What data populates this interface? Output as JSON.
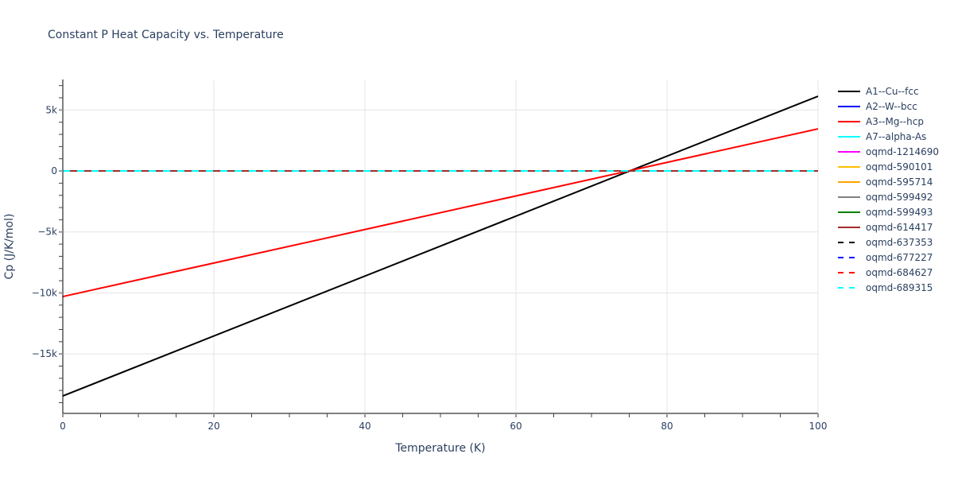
{
  "title": "Constant P Heat Capacity vs. Temperature",
  "chart_data": {
    "type": "line",
    "title": "Constant P Heat Capacity vs. Temperature",
    "xlabel": "Temperature (K)",
    "ylabel": "Cp (J/K/mol)",
    "xlim": [
      0,
      100
    ],
    "ylim": [
      -19880,
      7500
    ],
    "x_ticks": [
      0,
      20,
      40,
      60,
      80,
      100
    ],
    "x_tick_labels": [
      "0",
      "20",
      "40",
      "60",
      "80",
      "100"
    ],
    "y_ticks": [
      -15000,
      -10000,
      -5000,
      0,
      5000
    ],
    "y_tick_labels": [
      "−15k",
      "−10k",
      "−5k",
      "0",
      "5k"
    ],
    "grid": true,
    "legend_position": "right",
    "series": [
      {
        "name": "A1--Cu--fcc",
        "color": "#000000",
        "dash": "solid",
        "x": [
          0,
          100
        ],
        "values": [
          -18450,
          6130
        ]
      },
      {
        "name": "A2--W--bcc",
        "color": "#0000ff",
        "dash": "solid",
        "x": [
          0,
          100
        ],
        "values": [
          0,
          0
        ]
      },
      {
        "name": "A3--Mg--hcp",
        "color": "#ff0000",
        "dash": "solid",
        "x": [
          0,
          100
        ],
        "values": [
          -10300,
          3455
        ]
      },
      {
        "name": "A7--alpha-As",
        "color": "#00ffff",
        "dash": "solid",
        "x": [
          0,
          100
        ],
        "values": [
          0,
          0
        ]
      },
      {
        "name": "oqmd-1214690",
        "color": "#ff00ff",
        "dash": "solid",
        "x": [
          0,
          100
        ],
        "values": [
          0,
          0
        ]
      },
      {
        "name": "oqmd-590101",
        "color": "#ffbf00",
        "dash": "solid",
        "x": [
          0,
          100
        ],
        "values": [
          0,
          0
        ]
      },
      {
        "name": "oqmd-595714",
        "color": "#ffa500",
        "dash": "solid",
        "x": [
          0,
          100
        ],
        "values": [
          0,
          0
        ]
      },
      {
        "name": "oqmd-599492",
        "color": "#808080",
        "dash": "solid",
        "x": [
          0,
          100
        ],
        "values": [
          0,
          0
        ]
      },
      {
        "name": "oqmd-599493",
        "color": "#008000",
        "dash": "solid",
        "x": [
          0,
          100
        ],
        "values": [
          0,
          0
        ]
      },
      {
        "name": "oqmd-614417",
        "color": "#a52a2a",
        "dash": "solid",
        "x": [
          0,
          100
        ],
        "values": [
          0,
          0
        ]
      },
      {
        "name": "oqmd-637353",
        "color": "#000000",
        "dash": "dash",
        "x": [
          0,
          100
        ],
        "values": [
          0,
          0
        ]
      },
      {
        "name": "oqmd-677227",
        "color": "#0000ff",
        "dash": "dash",
        "x": [
          0,
          100
        ],
        "values": [
          0,
          0
        ]
      },
      {
        "name": "oqmd-684627",
        "color": "#ff0000",
        "dash": "dash",
        "x": [
          0,
          100
        ],
        "values": [
          0,
          0
        ]
      },
      {
        "name": "oqmd-689315",
        "color": "#00ffff",
        "dash": "dash",
        "x": [
          0,
          100
        ],
        "values": [
          0,
          0
        ]
      }
    ]
  }
}
